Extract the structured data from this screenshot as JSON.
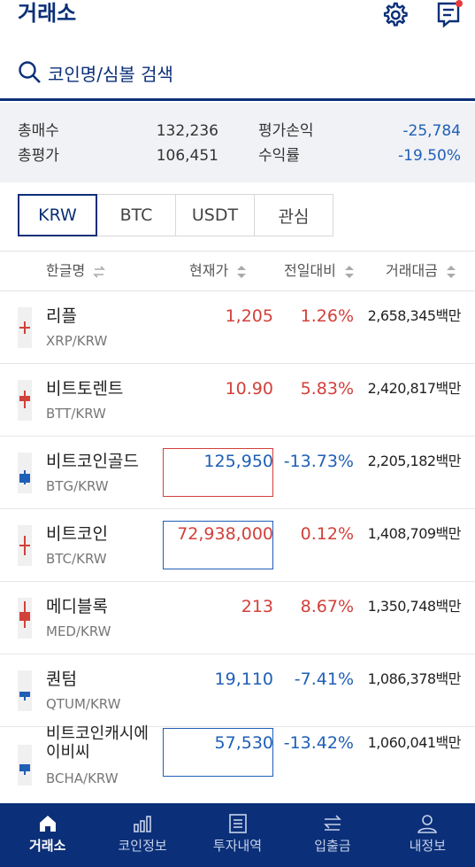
{
  "header": {
    "title": "거래소",
    "icons": [
      "gear-icon",
      "chat-icon"
    ],
    "notification_dot": true
  },
  "search": {
    "placeholder": "코인명/심볼 검색"
  },
  "summary": {
    "total_buy_label": "총매수",
    "total_buy_value": "132,236",
    "total_eval_label": "총평가",
    "total_eval_value": "106,451",
    "pnl_label": "평가손익",
    "pnl_value": "-25,784",
    "return_label": "수익률",
    "return_value": "-19.50%"
  },
  "market_tabs": {
    "selected": "KRW",
    "labels": [
      "KRW",
      "BTC",
      "USDT",
      "관심"
    ]
  },
  "columns": {
    "name": "한글명",
    "price": "현재가",
    "change": "전일대비",
    "volume": "거래대금"
  },
  "coins": [
    {
      "name": "리플",
      "symbol": "XRP/KRW",
      "price": "1,205",
      "change": "1.26%",
      "volume": "2,658,345백만",
      "direction": "up",
      "highlight": null
    },
    {
      "name": "비트토렌트",
      "symbol": "BTT/KRW",
      "price": "10.90",
      "change": "5.83%",
      "volume": "2,420,817백만",
      "direction": "up",
      "highlight": null
    },
    {
      "name": "비트코인골드",
      "symbol": "BTG/KRW",
      "price": "125,950",
      "change": "-13.73%",
      "volume": "2,205,182백만",
      "direction": "down",
      "highlight": "up"
    },
    {
      "name": "비트코인",
      "symbol": "BTC/KRW",
      "price": "72,938,000",
      "change": "0.12%",
      "volume": "1,408,709백만",
      "direction": "up",
      "highlight": "down"
    },
    {
      "name": "메디블록",
      "symbol": "MED/KRW",
      "price": "213",
      "change": "8.67%",
      "volume": "1,350,748백만",
      "direction": "up",
      "highlight": null
    },
    {
      "name": "퀀텀",
      "symbol": "QTUM/KRW",
      "price": "19,110",
      "change": "-7.41%",
      "volume": "1,086,378백만",
      "direction": "down",
      "highlight": null
    },
    {
      "name": "비트코인캐시에이비씨",
      "name_line1": "비트코인캐시에",
      "name_line2": "이비씨",
      "symbol": "BCHA/KRW",
      "price": "57,530",
      "change": "-13.42%",
      "volume": "1,060,041백만",
      "direction": "down",
      "highlight": "down"
    }
  ],
  "bottom_nav": {
    "active": "거래소",
    "items": [
      {
        "label": "거래소",
        "icon": "home-icon"
      },
      {
        "label": "코인정보",
        "icon": "bar-chart-icon"
      },
      {
        "label": "투자내역",
        "icon": "document-icon"
      },
      {
        "label": "입출금",
        "icon": "transfer-icon"
      },
      {
        "label": "내정보",
        "icon": "user-icon"
      }
    ]
  },
  "colors": {
    "brand": "#0b2f78",
    "up": "#d2403a",
    "down": "#1f5fb6"
  }
}
